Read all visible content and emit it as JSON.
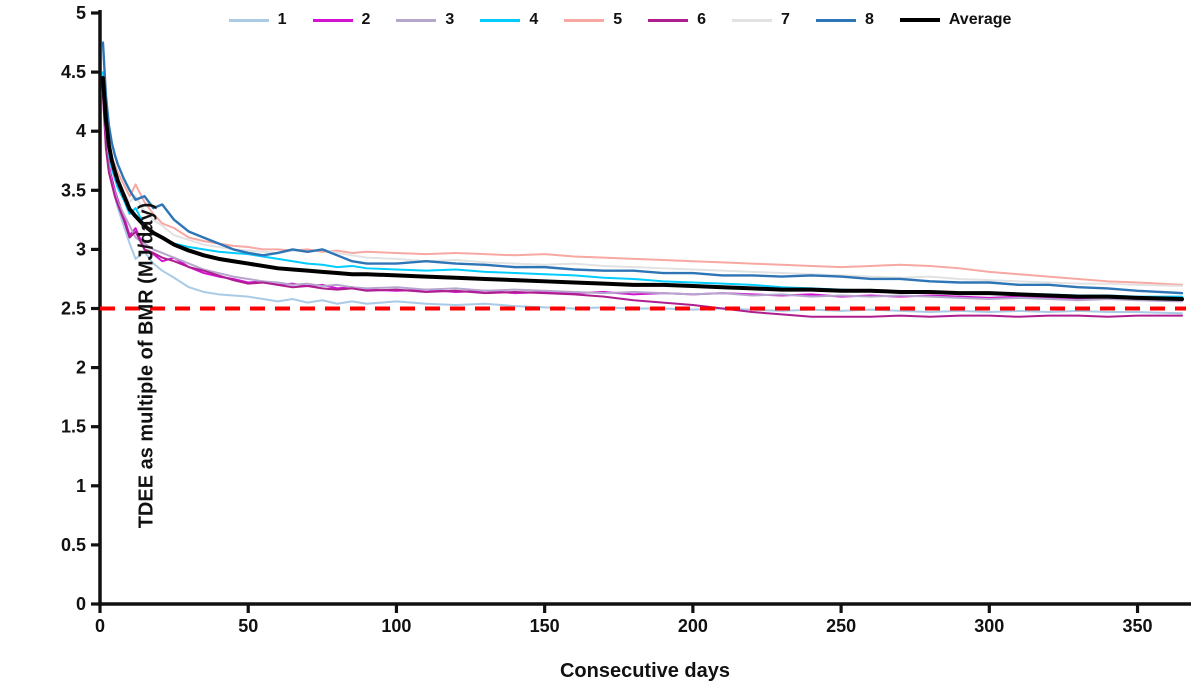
{
  "chart_data": {
    "type": "line",
    "title": "",
    "xlabel": "Consecutive days",
    "ylabel": "TDEE as multiple of BMR (MJ/day)",
    "xlim": [
      0,
      365
    ],
    "ylim": [
      0,
      5
    ],
    "x_ticks": [
      0,
      50,
      100,
      150,
      200,
      250,
      300,
      350
    ],
    "y_ticks": [
      0,
      0.5,
      1,
      1.5,
      2,
      2.5,
      3,
      3.5,
      4,
      4.5,
      5
    ],
    "grid": false,
    "legend_position": "top",
    "axis_color": "#111111",
    "x": [
      1,
      2,
      3,
      4,
      5,
      6,
      8,
      10,
      12,
      15,
      18,
      21,
      25,
      30,
      35,
      40,
      45,
      50,
      55,
      60,
      65,
      70,
      75,
      80,
      85,
      90,
      100,
      110,
      120,
      130,
      140,
      150,
      160,
      170,
      180,
      190,
      200,
      210,
      220,
      230,
      240,
      250,
      260,
      270,
      280,
      290,
      300,
      310,
      320,
      330,
      340,
      350,
      365
    ],
    "series": [
      {
        "name": "1",
        "color": "#a9cbe6",
        "width": 2,
        "values": [
          4.35,
          3.95,
          3.7,
          3.55,
          3.45,
          3.35,
          3.2,
          3.05,
          2.92,
          2.98,
          2.88,
          2.82,
          2.76,
          2.68,
          2.64,
          2.62,
          2.61,
          2.6,
          2.58,
          2.56,
          2.58,
          2.55,
          2.57,
          2.54,
          2.56,
          2.54,
          2.56,
          2.54,
          2.53,
          2.54,
          2.52,
          2.51,
          2.5,
          2.51,
          2.5,
          2.5,
          2.49,
          2.5,
          2.49,
          2.48,
          2.49,
          2.48,
          2.49,
          2.48,
          2.47,
          2.48,
          2.47,
          2.48,
          2.47,
          2.48,
          2.47,
          2.47,
          2.46
        ]
      },
      {
        "name": "2",
        "color": "#d214d2",
        "width": 2,
        "values": [
          4.35,
          3.9,
          3.7,
          3.6,
          3.5,
          3.42,
          3.28,
          3.12,
          3.18,
          3.0,
          2.96,
          2.9,
          2.93,
          2.85,
          2.8,
          2.77,
          2.75,
          2.72,
          2.73,
          2.7,
          2.71,
          2.69,
          2.7,
          2.67,
          2.68,
          2.66,
          2.65,
          2.66,
          2.64,
          2.65,
          2.63,
          2.64,
          2.63,
          2.64,
          2.62,
          2.63,
          2.62,
          2.63,
          2.62,
          2.61,
          2.62,
          2.6,
          2.61,
          2.6,
          2.61,
          2.6,
          2.59,
          2.6,
          2.59,
          2.58,
          2.59,
          2.58,
          2.57
        ]
      },
      {
        "name": "3",
        "color": "#b6a6cd",
        "width": 2,
        "values": [
          4.3,
          3.88,
          3.68,
          3.56,
          3.48,
          3.4,
          3.3,
          3.2,
          3.1,
          3.05,
          3.0,
          2.97,
          2.93,
          2.88,
          2.83,
          2.8,
          2.77,
          2.75,
          2.73,
          2.72,
          2.7,
          2.71,
          2.69,
          2.7,
          2.68,
          2.67,
          2.68,
          2.66,
          2.67,
          2.65,
          2.66,
          2.65,
          2.64,
          2.63,
          2.64,
          2.63,
          2.62,
          2.63,
          2.61,
          2.62,
          2.6,
          2.61,
          2.6,
          2.61,
          2.6,
          2.59,
          2.58,
          2.59,
          2.58,
          2.57,
          2.58,
          2.57,
          2.56
        ]
      },
      {
        "name": "4",
        "color": "#00ccff",
        "width": 2,
        "values": [
          4.5,
          4.0,
          3.8,
          3.68,
          3.6,
          3.52,
          3.42,
          3.3,
          3.35,
          3.2,
          3.15,
          3.1,
          3.05,
          3.02,
          3.0,
          2.98,
          2.97,
          2.96,
          2.94,
          2.92,
          2.9,
          2.88,
          2.87,
          2.85,
          2.86,
          2.84,
          2.83,
          2.82,
          2.83,
          2.81,
          2.8,
          2.79,
          2.78,
          2.76,
          2.75,
          2.73,
          2.72,
          2.71,
          2.7,
          2.68,
          2.67,
          2.66,
          2.65,
          2.64,
          2.64,
          2.63,
          2.63,
          2.62,
          2.62,
          2.61,
          2.61,
          2.6,
          2.6
        ]
      },
      {
        "name": "5",
        "color": "#f8a8a2",
        "width": 2,
        "values": [
          4.4,
          4.05,
          3.9,
          3.78,
          3.72,
          3.65,
          3.55,
          3.45,
          3.55,
          3.4,
          3.3,
          3.22,
          3.18,
          3.1,
          3.07,
          3.05,
          3.03,
          3.02,
          3.0,
          3.0,
          2.99,
          3.0,
          2.98,
          2.99,
          2.97,
          2.98,
          2.97,
          2.96,
          2.97,
          2.96,
          2.95,
          2.96,
          2.94,
          2.93,
          2.92,
          2.91,
          2.9,
          2.89,
          2.88,
          2.87,
          2.86,
          2.85,
          2.86,
          2.87,
          2.86,
          2.84,
          2.81,
          2.79,
          2.77,
          2.75,
          2.73,
          2.72,
          2.7
        ]
      },
      {
        "name": "6",
        "color": "#ae1e8f",
        "width": 2,
        "values": [
          4.3,
          3.85,
          3.65,
          3.55,
          3.45,
          3.38,
          3.25,
          3.1,
          3.15,
          3.0,
          2.97,
          2.93,
          2.9,
          2.85,
          2.82,
          2.78,
          2.74,
          2.71,
          2.72,
          2.7,
          2.68,
          2.69,
          2.67,
          2.66,
          2.67,
          2.65,
          2.66,
          2.64,
          2.65,
          2.63,
          2.64,
          2.63,
          2.62,
          2.6,
          2.57,
          2.55,
          2.53,
          2.5,
          2.47,
          2.45,
          2.43,
          2.43,
          2.43,
          2.44,
          2.43,
          2.44,
          2.44,
          2.43,
          2.44,
          2.44,
          2.43,
          2.44,
          2.44
        ]
      },
      {
        "name": "7",
        "color": "#e2e2e2",
        "width": 2,
        "values": [
          4.45,
          4.0,
          3.82,
          3.72,
          3.65,
          3.58,
          3.48,
          3.4,
          3.45,
          3.32,
          3.25,
          3.2,
          3.12,
          3.08,
          3.04,
          3.02,
          3.0,
          2.99,
          2.98,
          2.97,
          2.99,
          2.98,
          3.0,
          2.97,
          2.95,
          2.93,
          2.92,
          2.9,
          2.91,
          2.89,
          2.88,
          2.87,
          2.88,
          2.86,
          2.85,
          2.84,
          2.83,
          2.82,
          2.81,
          2.8,
          2.79,
          2.78,
          2.77,
          2.76,
          2.77,
          2.75,
          2.74,
          2.73,
          2.72,
          2.71,
          2.71,
          2.7,
          2.69
        ]
      },
      {
        "name": "8",
        "color": "#2e75b6",
        "width": 2.4,
        "values": [
          4.75,
          4.3,
          4.05,
          3.9,
          3.8,
          3.72,
          3.6,
          3.5,
          3.42,
          3.45,
          3.35,
          3.38,
          3.25,
          3.15,
          3.1,
          3.05,
          3.0,
          2.97,
          2.95,
          2.97,
          3.0,
          2.98,
          3.0,
          2.95,
          2.9,
          2.88,
          2.88,
          2.9,
          2.88,
          2.87,
          2.85,
          2.85,
          2.83,
          2.82,
          2.82,
          2.8,
          2.8,
          2.78,
          2.78,
          2.77,
          2.78,
          2.77,
          2.75,
          2.75,
          2.73,
          2.72,
          2.72,
          2.7,
          2.7,
          2.68,
          2.67,
          2.65,
          2.63
        ]
      },
      {
        "name": "Average",
        "color": "#000000",
        "width": 4,
        "values": [
          4.45,
          4.1,
          3.88,
          3.75,
          3.66,
          3.58,
          3.46,
          3.34,
          3.28,
          3.2,
          3.14,
          3.1,
          3.04,
          2.99,
          2.95,
          2.92,
          2.9,
          2.88,
          2.86,
          2.84,
          2.83,
          2.82,
          2.81,
          2.8,
          2.79,
          2.79,
          2.78,
          2.77,
          2.76,
          2.75,
          2.74,
          2.73,
          2.72,
          2.71,
          2.7,
          2.7,
          2.69,
          2.68,
          2.67,
          2.66,
          2.66,
          2.65,
          2.65,
          2.64,
          2.64,
          2.63,
          2.63,
          2.62,
          2.61,
          2.6,
          2.6,
          2.59,
          2.58
        ]
      }
    ],
    "reference_line": {
      "y": 2.5,
      "color": "#ff0000",
      "style": "dashed"
    }
  }
}
